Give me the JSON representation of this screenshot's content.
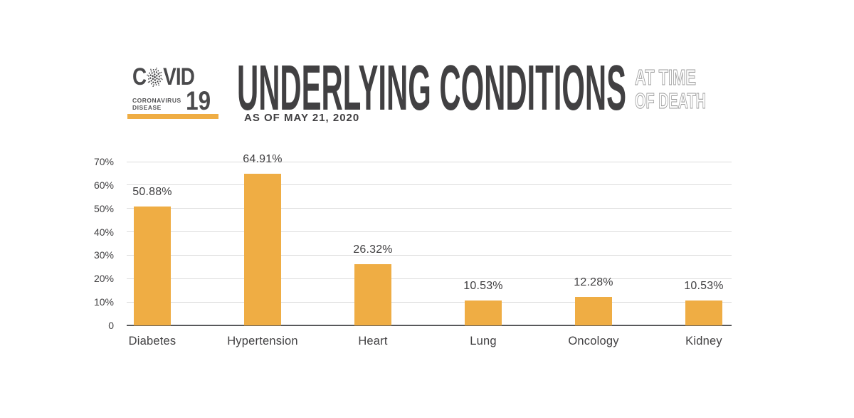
{
  "logo": {
    "covid_c": "C",
    "covid_rest": "VID",
    "number": "19",
    "sub_line1": "CORONAVIRUS",
    "sub_line2": "DISEASE"
  },
  "header": {
    "title": "UNDERLYING CONDITIONS",
    "title_right_line1": "AT TIME",
    "title_right_line2": "OF DEATH",
    "subtitle": "AS OF MAY 21, 2020"
  },
  "colors": {
    "accent": "#EFAD44",
    "ink": "#414042",
    "logo_ink": "#4A4A4C",
    "grid": "#DCDCDC",
    "axis": "#58595B",
    "outline_text": "#9B9B9B"
  },
  "chart_data": {
    "type": "bar",
    "title": "UNDERLYING CONDITIONS AT TIME OF DEATH — AS OF MAY 21, 2020",
    "categories": [
      "Diabetes",
      "Hypertension",
      "Heart",
      "Lung",
      "Oncology",
      "Kidney"
    ],
    "values": [
      50.88,
      64.91,
      26.32,
      10.53,
      12.28,
      10.53
    ],
    "value_labels": [
      "50.88%",
      "64.91%",
      "26.32%",
      "10.53%",
      "12.28%",
      "10.53%"
    ],
    "y_tick_labels": [
      "70%",
      "60%",
      "50%",
      "40%",
      "30%",
      "20%",
      "10%",
      "0"
    ],
    "y_tick_values": [
      70,
      60,
      50,
      40,
      30,
      20,
      10,
      0
    ],
    "ylim": [
      0,
      70
    ],
    "xlabel": "",
    "ylabel": "",
    "grid": true,
    "legend": false,
    "bar_color": "#EFAD44"
  }
}
